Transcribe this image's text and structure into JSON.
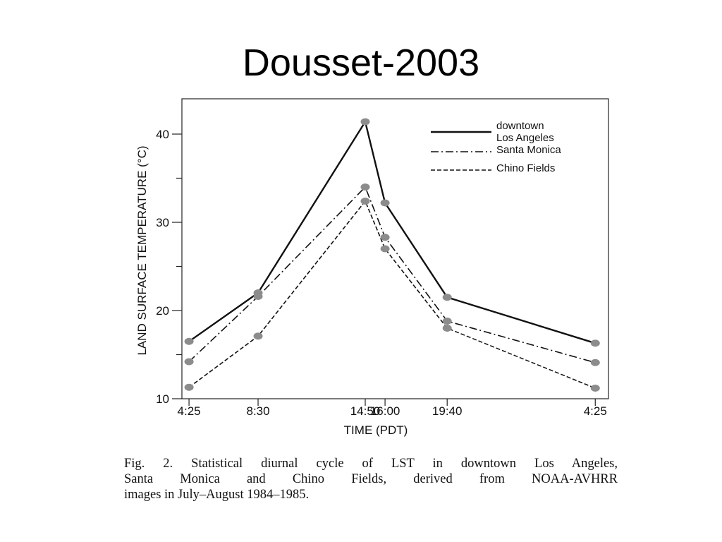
{
  "slide": {
    "title": "Dousset-2003"
  },
  "chart_data": {
    "type": "line",
    "xlabel": "TIME (PDT)",
    "ylabel": "LAND SURFACE TEMPERATURE (°C)",
    "ylim": [
      10,
      44
    ],
    "yticks": [
      10,
      20,
      30,
      40
    ],
    "x_ticks": [
      "4:25",
      "8:30",
      "14:50",
      "16:00",
      "19:40",
      "4:25"
    ],
    "x_hours": [
      4.42,
      8.5,
      14.83,
      16.0,
      19.67,
      28.42
    ],
    "legend_position": "top-right",
    "grid": false,
    "series": [
      {
        "name": "downtown Los Angeles",
        "name_lines": [
          "downtown",
          "Los Angeles"
        ],
        "style": "solid",
        "values": [
          16.5,
          22.0,
          41.4,
          32.2,
          21.5,
          16.3
        ]
      },
      {
        "name": "Santa Monica",
        "name_lines": [
          "Santa Monica"
        ],
        "style": "dashdot",
        "values": [
          14.2,
          21.6,
          34.0,
          28.3,
          18.8,
          14.1
        ]
      },
      {
        "name": "Chino Fields",
        "name_lines": [
          "Chino Fields"
        ],
        "style": "dashed",
        "values": [
          11.3,
          17.1,
          32.4,
          27.0,
          18.0,
          11.2
        ]
      }
    ],
    "marker_color": "#8c8c8c",
    "line_color": "#111111"
  },
  "caption": {
    "lines": [
      "Fig. 2. Statistical diurnal cycle of LST in downtown Los Angeles,",
      "Santa Monica and Chino Fields, derived from NOAA-AVHRR",
      "images in July–August 1984–1985."
    ]
  }
}
